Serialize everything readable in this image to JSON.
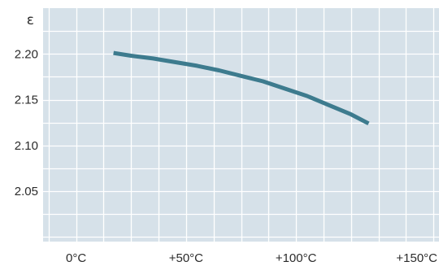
{
  "chart_data": {
    "type": "line",
    "title": "",
    "xlabel": "",
    "ylabel": "ε",
    "xlim": [
      -15,
      165
    ],
    "ylim": [
      1.995,
      2.25
    ],
    "x_ticks": [
      {
        "value": 0,
        "label": "0°C"
      },
      {
        "value": 50,
        "label": "+50°C"
      },
      {
        "value": 100,
        "label": "+100°C"
      },
      {
        "value": 150,
        "label": "+150°C"
      }
    ],
    "y_ticks": [
      {
        "value": 2.2,
        "label": "2.20"
      },
      {
        "value": 2.15,
        "label": "2.15"
      },
      {
        "value": 2.1,
        "label": "2.10"
      },
      {
        "value": 2.05,
        "label": "2.05"
      }
    ],
    "grid": true,
    "grid_step_x": 12.5,
    "grid_step_y": 0.025,
    "colors": {
      "background": "#d6e1e9",
      "grid": "#ffffff",
      "line": "#3d7b8e",
      "text": "#2b2b2b"
    },
    "series": [
      {
        "x": [
          17,
          25,
          35,
          45,
          55,
          65,
          75,
          85,
          95,
          105,
          115,
          125,
          133
        ],
        "y": [
          2.201,
          2.198,
          2.195,
          2.191,
          2.187,
          2.182,
          2.176,
          2.17,
          2.162,
          2.154,
          2.144,
          2.134,
          2.124
        ]
      }
    ]
  }
}
